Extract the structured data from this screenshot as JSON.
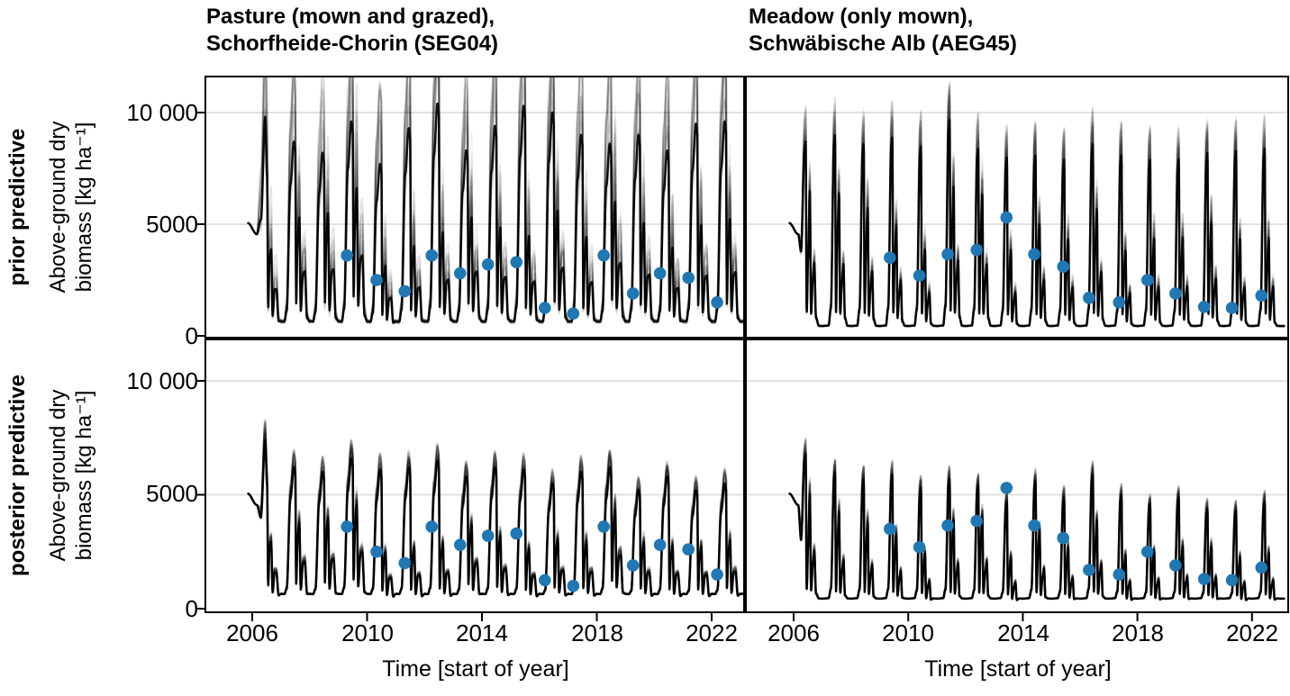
{
  "header": {
    "title_left_line1": "Pasture (mown and grazed),",
    "title_left_line2": "Schorfheide-Chorin (SEG04)",
    "title_right_line1": "Meadow (only mown),",
    "title_right_line2": "Schwäbische Alb (AEG45)"
  },
  "axes": {
    "row_label_top": "prior predictive",
    "row_label_bottom": "posterior predictive",
    "y_label_line1": "Above-ground dry",
    "y_label_line2": "biomass [kg ha⁻¹]",
    "x_label": "Time [start of year]",
    "x_tick_labels": [
      "2006",
      "2010",
      "2014",
      "2018",
      "2022"
    ],
    "y_tick_labels": [
      "0",
      "5000",
      "10 000"
    ]
  },
  "colors": {
    "observation_dot": "#1f77b4",
    "ensemble_line": "#000000",
    "gridline": "#d9d9d9",
    "panel_border": "#000000",
    "background": "#ffffff"
  },
  "chart_data": {
    "type": "line",
    "title": "Prior and posterior predictive simulations of above-ground dry biomass with field observations",
    "xlabel": "Time [start of year]",
    "ylabel": "Above-ground dry biomass [kg ha⁻¹]",
    "x_ticks": [
      2006,
      2010,
      2014,
      2018,
      2022
    ],
    "y_ticks": [
      0,
      5000,
      10000
    ],
    "xlim": [
      2004.4,
      2023.2
    ],
    "ylim": [
      0,
      11650
    ],
    "grid": "horizontal-only",
    "legend": "none",
    "columns": [
      {
        "id": "SEG04",
        "title": "Pasture (mown and grazed), Schorfheide-Chorin (SEG04)"
      },
      {
        "id": "AEG45",
        "title": "Meadow (only mown), Schwäbische Alb (AEG45)"
      }
    ],
    "rows": [
      {
        "id": "prior",
        "label": "prior predictive"
      },
      {
        "id": "posterior",
        "label": "posterior predictive"
      }
    ],
    "initial_state": {
      "start_year": 2005.9,
      "start_value": 5050,
      "dip_value": 4550
    },
    "observations": {
      "units": "kg ha⁻¹",
      "SEG04": [
        [
          2009.3,
          3600
        ],
        [
          2010.33,
          2500
        ],
        [
          2011.31,
          2000
        ],
        [
          2012.25,
          3600
        ],
        [
          2013.24,
          2800
        ],
        [
          2014.21,
          3200
        ],
        [
          2015.2,
          3300
        ],
        [
          2016.19,
          1250
        ],
        [
          2017.18,
          1000
        ],
        [
          2018.24,
          3600
        ],
        [
          2019.26,
          1900
        ],
        [
          2020.2,
          2800
        ],
        [
          2021.19,
          2600
        ],
        [
          2022.19,
          1500
        ]
      ],
      "AEG45": [
        [
          2009.36,
          3500
        ],
        [
          2010.39,
          2700
        ],
        [
          2011.38,
          3650
        ],
        [
          2012.39,
          3850
        ],
        [
          2013.43,
          5300
        ],
        [
          2014.4,
          3650
        ],
        [
          2015.41,
          3100
        ],
        [
          2016.31,
          1700
        ],
        [
          2017.36,
          1500
        ],
        [
          2018.35,
          2500
        ],
        [
          2019.33,
          1900
        ],
        [
          2020.33,
          1300
        ],
        [
          2021.3,
          1250
        ],
        [
          2022.33,
          1800
        ]
      ]
    },
    "ensembles": [
      {
        "panel": "prior_SEG04",
        "row": 0,
        "col": 0,
        "site": "SEG04",
        "style": "pasture",
        "n": 34,
        "alpha": 0.05,
        "spread": 0.5,
        "years": [
          2006,
          2007,
          2008,
          2009,
          2010,
          2011,
          2012,
          2013,
          2014,
          2015,
          2016,
          2017,
          2018,
          2019,
          2020,
          2021,
          2022
        ],
        "peak_by_year": [
          9800,
          8700,
          8200,
          9600,
          7700,
          9300,
          10400,
          8300,
          9400,
          10300,
          10000,
          9000,
          8600,
          9000,
          8300,
          9500,
          9600
        ]
      },
      {
        "panel": "prior_AEG45",
        "row": 0,
        "col": 1,
        "site": "AEG45",
        "style": "meadow",
        "n": 30,
        "alpha": 0.06,
        "spread": 0.2,
        "years": [
          2006,
          2007,
          2008,
          2009,
          2010,
          2011,
          2012,
          2013,
          2014,
          2015,
          2016,
          2017,
          2018,
          2019,
          2020,
          2021,
          2022
        ],
        "peak_by_year": [
          8700,
          9000,
          8600,
          8900,
          8500,
          9700,
          8400,
          8000,
          8100,
          7900,
          8600,
          8100,
          7900,
          7900,
          8200,
          8300,
          8400
        ]
      },
      {
        "panel": "posterior_SEG04",
        "row": 1,
        "col": 0,
        "site": "SEG04",
        "style": "pasture",
        "n": 30,
        "alpha": 0.085,
        "spread": 0.13,
        "years": [
          2006,
          2007,
          2008,
          2009,
          2010,
          2011,
          2012,
          2013,
          2014,
          2015,
          2016,
          2017,
          2018,
          2019,
          2020,
          2021,
          2022
        ],
        "peak_by_year": [
          7400,
          6200,
          6000,
          6600,
          6100,
          6200,
          6500,
          5800,
          6200,
          6100,
          5500,
          6000,
          6200,
          5200,
          5800,
          5200,
          5500
        ]
      },
      {
        "panel": "posterior_AEG45",
        "row": 1,
        "col": 1,
        "site": "AEG45",
        "style": "meadow",
        "n": 30,
        "alpha": 0.085,
        "spread": 0.11,
        "years": [
          2006,
          2007,
          2008,
          2009,
          2010,
          2011,
          2012,
          2013,
          2014,
          2015,
          2016,
          2017,
          2018,
          2019,
          2020,
          2021,
          2022
        ],
        "peak_by_year": [
          6800,
          6000,
          5700,
          5900,
          5300,
          5700,
          5400,
          4700,
          5600,
          4900,
          5900,
          5000,
          4600,
          4900,
          4400,
          4300,
          4700
        ]
      }
    ]
  }
}
